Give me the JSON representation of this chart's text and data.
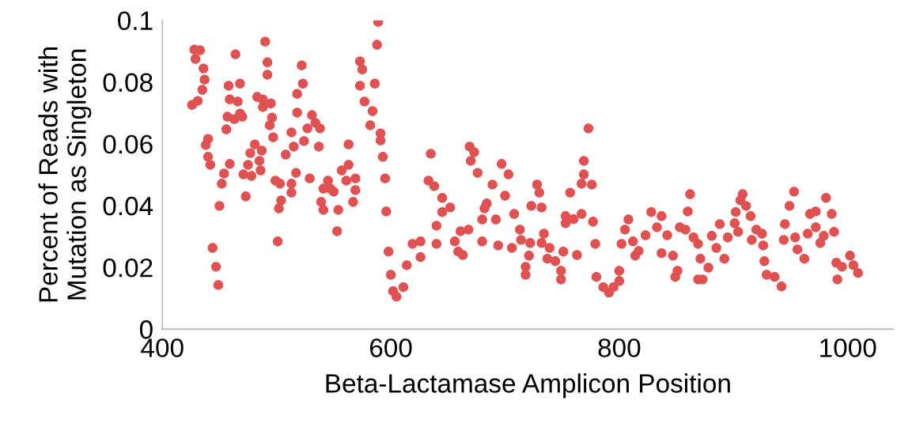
{
  "chart_data": {
    "type": "scatter",
    "xlabel": "Beta-Lactamase Amplicon Position",
    "ylabel": "Percent of Reads with\nMutation as Singleton",
    "xlim": [
      400,
      1040
    ],
    "xticks": [
      400,
      600,
      800,
      1000
    ],
    "ylim": [
      0,
      0.1
    ],
    "yticks": [
      0,
      0.02,
      0.04,
      0.06,
      0.08,
      {
        "value": 0.1,
        "label": "0.1"
      }
    ],
    "grid": false,
    "legend": false,
    "marker": "circle",
    "series": [
      {
        "color": "#e05252",
        "x": [
          428,
          433,
          429,
          436,
          437,
          435,
          431,
          426,
          440,
          438,
          440,
          442,
          444,
          447,
          449,
          450,
          452,
          454,
          456,
          459,
          458,
          464,
          468,
          459,
          466,
          468,
          457,
          463,
          470,
          473,
          471,
          475,
          478,
          477,
          481,
          483,
          488,
          488,
          490,
          492,
          492,
          495,
          496,
          494,
          497,
          485,
          487,
          486,
          499,
          503,
          504,
          502,
          501,
          508,
          513,
          515,
          517,
          513,
          513,
          518,
          518,
          523,
          522,
          524,
          527,
          529,
          531,
          534,
          537,
          538,
          541,
          539,
          545,
          547,
          550,
          541,
          554,
          553,
          557,
          563,
          563,
          561,
          569,
          569,
          567,
          573,
          575,
          573,
          577,
          584,
          582,
          586,
          589,
          588,
          591,
          591,
          593,
          595,
          596,
          598,
          600,
          602,
          605,
          611,
          614,
          619,
          626,
          626,
          635,
          633,
          638,
          645,
          640,
          645,
          652,
          640,
          656,
          661,
          668,
          659,
          663,
          669,
          673,
          670,
          676,
          680,
          680,
          682,
          689,
          697,
          703,
          700,
          684,
          692,
          694,
          706,
          708,
          713,
          714,
          722,
          721,
          718,
          718,
          728,
          730,
          723,
          732,
          734,
          732,
          739,
          737,
          744,
          749,
          749,
          751,
          763,
          753,
          753,
          757,
          760,
          767,
          767,
          769,
          769,
          773,
          776,
          777,
          779,
          780,
          786,
          791,
          795,
          800,
          800,
          808,
          805,
          802,
          812,
          814,
          817,
          823,
          828,
          833,
          837,
          837,
          842,
          847,
          851,
          849,
          853,
          860,
          862,
          865,
          869,
          858,
          869,
          871,
          878,
          873,
          881,
          888,
          885,
          892,
          895,
          901,
          904,
          902,
          906,
          908,
          911,
          915,
          916,
          920,
          925,
          926,
          927,
          929,
          936,
          942,
          944,
          945,
          949,
          953,
          954,
          956,
          962,
          965,
          967,
          972,
          972,
          976,
          979,
          981,
          986,
          988,
          990,
          991,
          995,
          1002,
          1005,
          1009
        ],
        "values": [
          0.0905,
          0.0903,
          0.0875,
          0.0844,
          0.0808,
          0.0775,
          0.0739,
          0.0726,
          0.0616,
          0.0596,
          0.0558,
          0.0532,
          0.0263,
          0.0202,
          0.0143,
          0.0399,
          0.0471,
          0.0504,
          0.0647,
          0.0535,
          0.0788,
          0.089,
          0.0795,
          0.0744,
          0.0737,
          0.0698,
          0.0688,
          0.068,
          0.0688,
          0.043,
          0.0501,
          0.0532,
          0.0496,
          0.057,
          0.0598,
          0.0752,
          0.0744,
          0.0719,
          0.0931,
          0.0864,
          0.0824,
          0.0731,
          0.0685,
          0.066,
          0.0621,
          0.0545,
          0.0578,
          0.0514,
          0.0481,
          0.0471,
          0.0417,
          0.0391,
          0.0284,
          0.0565,
          0.0637,
          0.0591,
          0.0506,
          0.0471,
          0.0442,
          0.0701,
          0.0762,
          0.0795,
          0.0854,
          0.0609,
          0.065,
          0.0488,
          0.0693,
          0.0668,
          0.0591,
          0.065,
          0.0455,
          0.0412,
          0.0481,
          0.0455,
          0.0445,
          0.0386,
          0.0386,
          0.0317,
          0.0514,
          0.0532,
          0.0598,
          0.0481,
          0.0488,
          0.045,
          0.0412,
          0.0867,
          0.0841,
          0.0788,
          0.0737,
          0.0706,
          0.066,
          0.0795,
          0.0995,
          0.0921,
          0.0634,
          0.0611,
          0.0558,
          0.0488,
          0.0381,
          0.0251,
          0.0176,
          0.0123,
          0.0105,
          0.0136,
          0.0207,
          0.0276,
          0.0284,
          0.0233,
          0.0568,
          0.0481,
          0.0463,
          0.0425,
          0.0335,
          0.0379,
          0.0394,
          0.0276,
          0.0284,
          0.0317,
          0.0322,
          0.0251,
          0.024,
          0.0591,
          0.0573,
          0.0545,
          0.0506,
          0.0284,
          0.0355,
          0.0391,
          0.0468,
          0.0535,
          0.0501,
          0.0432,
          0.0407,
          0.0355,
          0.0271,
          0.0263,
          0.0373,
          0.0322,
          0.0289,
          0.0279,
          0.0238,
          0.0202,
          0.0176,
          0.0468,
          0.0442,
          0.0399,
          0.0394,
          0.0309,
          0.0279,
          0.0263,
          0.0228,
          0.022,
          0.0189,
          0.0161,
          0.0251,
          0.024,
          0.0366,
          0.0343,
          0.0442,
          0.0356,
          0.0373,
          0.0471,
          0.0501,
          0.0545,
          0.065,
          0.0468,
          0.0348,
          0.0276,
          0.0169,
          0.0136,
          0.0118,
          0.0136,
          0.0156,
          0.0189,
          0.0355,
          0.0322,
          0.0276,
          0.0284,
          0.0238,
          0.0253,
          0.0304,
          0.0379,
          0.033,
          0.0366,
          0.0246,
          0.0304,
          0.0238,
          0.0189,
          0.0169,
          0.033,
          0.0381,
          0.0437,
          0.0297,
          0.0161,
          0.0322,
          0.0276,
          0.0228,
          0.0199,
          0.0161,
          0.0302,
          0.034,
          0.0263,
          0.0228,
          0.0297,
          0.0343,
          0.0315,
          0.0379,
          0.0417,
          0.0437,
          0.0399,
          0.0366,
          0.0289,
          0.0322,
          0.0309,
          0.0271,
          0.022,
          0.0176,
          0.0169,
          0.0138,
          0.0289,
          0.034,
          0.0399,
          0.0445,
          0.0297,
          0.0258,
          0.0228,
          0.0309,
          0.0373,
          0.033,
          0.0381,
          0.0279,
          0.0302,
          0.0425,
          0.0373,
          0.0315,
          0.0215,
          0.0161,
          0.0202,
          0.0238,
          0.0207,
          0.0182
        ]
      }
    ]
  }
}
